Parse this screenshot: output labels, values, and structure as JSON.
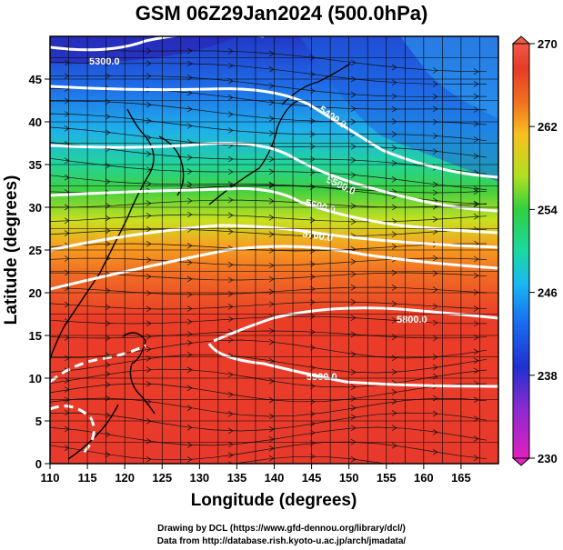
{
  "title": "GSM 06Z29Jan2024 (500.0hPa)",
  "xlabel": "Longitude (degrees)",
  "ylabel": "Latitude  (degrees)",
  "x_ticks": [
    110,
    115,
    120,
    125,
    130,
    135,
    140,
    145,
    150,
    155,
    160,
    165
  ],
  "y_ticks": [
    0,
    5,
    10,
    15,
    20,
    25,
    30,
    35,
    40,
    45
  ],
  "xlim": [
    110,
    170
  ],
  "ylim": [
    0,
    50
  ],
  "colorbar": {
    "ticks": [
      230,
      238,
      246,
      254,
      262,
      270
    ],
    "range": [
      230,
      270
    ],
    "colors": [
      "#e020c0",
      "#8a2bd0",
      "#2030d0",
      "#1a6ef0",
      "#19b8f0",
      "#1ad8a0",
      "#30d040",
      "#b0e020",
      "#f8c020",
      "#f07020",
      "#e83a28",
      "#f05848"
    ]
  },
  "contours": [
    {
      "label": "5300.0"
    },
    {
      "label": "5400.0"
    },
    {
      "label": "5500.0"
    },
    {
      "label": "5600.0"
    },
    {
      "label": "5700.0"
    },
    {
      "label": "5800.0"
    },
    {
      "label": "5900.0"
    }
  ],
  "credits": [
    "Drawing by DCL (https://www.gfd-dennou.org/library/dcl/)",
    "Data from http://database.rish.kyoto-u.ac.jp/arch/jmadata/"
  ]
}
